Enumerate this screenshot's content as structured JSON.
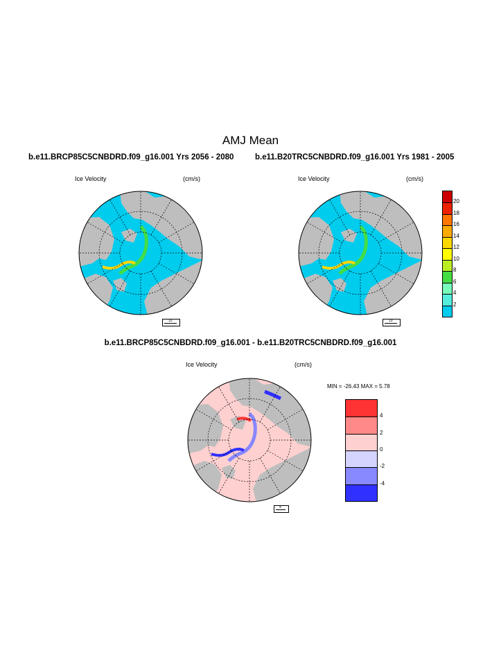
{
  "figure": {
    "title": "AMJ Mean",
    "left_header": "b.e11.BRCP85C5CNBDRD.f09_g16.001  Yrs 2056 - 2080",
    "right_header": "b.e11.B20TRC5CNBDRD.f09_g16.001  Yrs 1981 - 2005",
    "difference_header": "b.e11.BRCP85C5CNBDRD.f09_g16.001 - b.e11.B20TRC5CNBDRD.f09_g16.001"
  },
  "panels": [
    {
      "id": "rcp85",
      "variable": "Ice Velocity",
      "units": "(cm/s)",
      "ref_vector_label": "10"
    },
    {
      "id": "hist",
      "variable": "Ice Velocity",
      "units": "(cm/s)",
      "ref_vector_label": "10"
    },
    {
      "id": "diff",
      "variable": "Ice Velocity",
      "units": "(cm/s)",
      "ref_vector_label": "4",
      "min_max_text": "MIN = -26.43 MAX =   5.78"
    }
  ],
  "colorbars": {
    "velocity": {
      "labels": [
        "20",
        "18",
        "16",
        "14",
        "12",
        "10",
        "8",
        "6",
        "4",
        "2"
      ],
      "colors": [
        "#cc0000",
        "#ee2200",
        "#ff7700",
        "#ffaa00",
        "#ffd800",
        "#ffff00",
        "#bbee22",
        "#44dd44",
        "#77ffbb",
        "#55eedd",
        "#00ccee"
      ]
    },
    "difference": {
      "labels": [
        "4",
        "2",
        "0",
        "-2",
        "-4"
      ],
      "colors": [
        "#ff3333",
        "#ff8888",
        "#ffd0d0",
        "#d4d4ff",
        "#8888ff",
        "#3030ff"
      ]
    }
  },
  "map_colors": {
    "land": "#bebebe",
    "ocean_velocity": "#00ccee",
    "ocean_difference": "#ffd0d0"
  }
}
